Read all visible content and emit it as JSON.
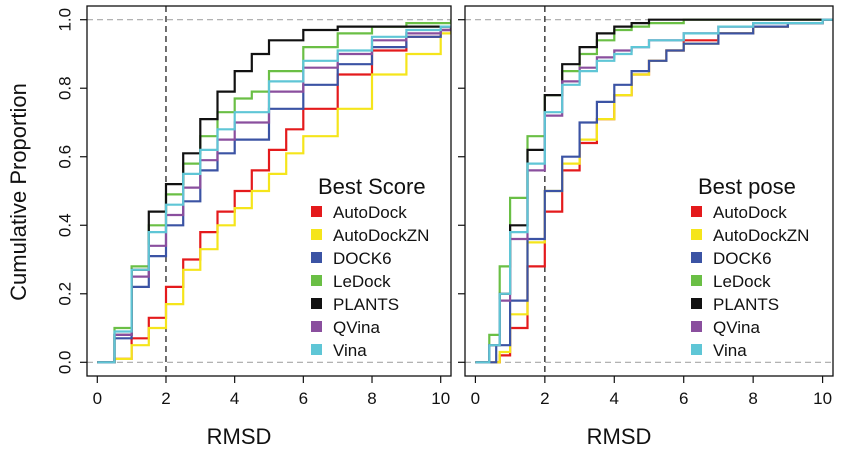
{
  "ylabel": "Cumulative Proportion",
  "chart_data": [
    {
      "type": "line",
      "title": "",
      "xlabel": "RMSD",
      "ylabel": "Cumulative Proportion",
      "xlim": [
        -0.3,
        10.3
      ],
      "ylim": [
        -0.04,
        1.04
      ],
      "xticks": [
        0,
        2,
        4,
        6,
        8,
        10
      ],
      "yticks": [
        0.0,
        0.2,
        0.4,
        0.6,
        0.8,
        1.0
      ],
      "show_yticks": true,
      "reference_lines": {
        "vertical_x": 2,
        "horizontal_y": [
          0,
          1
        ]
      },
      "legend": {
        "title": "Best Score",
        "placement": "right"
      },
      "series": [
        {
          "name": "AutoDock",
          "color": "#e41a1c",
          "x": [
            0,
            0.3,
            0.5,
            1.0,
            1.5,
            2.0,
            2.5,
            3.0,
            3.5,
            4.0,
            4.5,
            5.0,
            5.5,
            6.0,
            7.0,
            8.0,
            9.0,
            10.0,
            10.3
          ],
          "y": [
            0,
            0,
            0.01,
            0.07,
            0.13,
            0.22,
            0.3,
            0.38,
            0.44,
            0.5,
            0.56,
            0.62,
            0.68,
            0.74,
            0.84,
            0.91,
            0.95,
            0.97,
            0.98
          ]
        },
        {
          "name": "AutoDockZN",
          "color": "#f5e51b",
          "x": [
            0,
            0.3,
            0.5,
            1.0,
            1.5,
            2.0,
            2.5,
            3.0,
            3.5,
            4.0,
            4.5,
            5.0,
            5.5,
            6.0,
            7.0,
            8.0,
            9.0,
            10.0,
            10.3
          ],
          "y": [
            0,
            0,
            0.01,
            0.05,
            0.1,
            0.17,
            0.27,
            0.33,
            0.4,
            0.45,
            0.5,
            0.55,
            0.61,
            0.66,
            0.74,
            0.84,
            0.9,
            0.96,
            0.97
          ]
        },
        {
          "name": "DOCK6",
          "color": "#3b53a4",
          "x": [
            0,
            0.2,
            0.5,
            1.0,
            1.5,
            2.0,
            2.5,
            3.0,
            3.5,
            4.0,
            5.0,
            6.0,
            7.0,
            8.0,
            9.0,
            10.0,
            10.3
          ],
          "y": [
            0,
            0,
            0.07,
            0.22,
            0.31,
            0.4,
            0.47,
            0.56,
            0.61,
            0.65,
            0.74,
            0.81,
            0.87,
            0.92,
            0.95,
            0.97,
            0.98
          ]
        },
        {
          "name": "LeDock",
          "color": "#6abf45",
          "x": [
            0,
            0.2,
            0.5,
            1.0,
            1.5,
            2.0,
            2.5,
            3.0,
            3.5,
            4.0,
            4.5,
            5.0,
            6.0,
            7.0,
            8.0,
            9.0,
            10.0,
            10.3
          ],
          "y": [
            0,
            0,
            0.1,
            0.28,
            0.4,
            0.49,
            0.58,
            0.66,
            0.73,
            0.77,
            0.79,
            0.85,
            0.92,
            0.96,
            0.98,
            0.99,
            0.99,
            1.0
          ]
        },
        {
          "name": "PLANTS",
          "color": "#111111",
          "x": [
            0,
            0.2,
            0.5,
            1.0,
            1.5,
            2.0,
            2.5,
            3.0,
            3.5,
            4.0,
            4.5,
            5.0,
            6.0,
            7.0,
            8.0,
            9.0,
            10.0,
            10.3
          ],
          "y": [
            0,
            0,
            0.08,
            0.27,
            0.44,
            0.52,
            0.61,
            0.71,
            0.79,
            0.85,
            0.9,
            0.94,
            0.97,
            0.98,
            0.98,
            0.98,
            0.98,
            0.98
          ]
        },
        {
          "name": "QVina",
          "color": "#8a4f9e",
          "x": [
            0,
            0.2,
            0.5,
            1.0,
            1.5,
            2.0,
            2.5,
            3.0,
            3.5,
            4.0,
            5.0,
            6.0,
            7.0,
            8.0,
            9.0,
            10.0,
            10.3
          ],
          "y": [
            0,
            0,
            0.08,
            0.25,
            0.34,
            0.43,
            0.51,
            0.59,
            0.65,
            0.7,
            0.79,
            0.86,
            0.9,
            0.94,
            0.96,
            0.97,
            0.98
          ]
        },
        {
          "name": "Vina",
          "color": "#5fc6d6",
          "x": [
            0,
            0.2,
            0.5,
            1.0,
            1.5,
            2.0,
            2.5,
            3.0,
            3.5,
            4.0,
            5.0,
            6.0,
            7.0,
            8.0,
            9.0,
            10.0,
            10.3
          ],
          "y": [
            0,
            0,
            0.09,
            0.27,
            0.38,
            0.46,
            0.55,
            0.62,
            0.68,
            0.73,
            0.82,
            0.88,
            0.91,
            0.95,
            0.97,
            0.98,
            0.98
          ]
        }
      ]
    },
    {
      "type": "line",
      "title": "",
      "xlabel": "RMSD",
      "ylabel": "",
      "xlim": [
        -0.3,
        10.3
      ],
      "ylim": [
        -0.04,
        1.04
      ],
      "xticks": [
        0,
        2,
        4,
        6,
        8,
        10
      ],
      "yticks": [
        0.0,
        0.2,
        0.4,
        0.6,
        0.8,
        1.0
      ],
      "show_yticks": false,
      "reference_lines": {
        "vertical_x": 2,
        "horizontal_y": [
          0,
          1
        ]
      },
      "legend": {
        "title": "Best pose",
        "placement": "right"
      },
      "series": [
        {
          "name": "AutoDock",
          "color": "#e41a1c",
          "x": [
            0,
            0.4,
            0.7,
            1.0,
            1.5,
            2.0,
            2.5,
            3.0,
            3.5,
            4.0,
            4.5,
            5.0,
            5.5,
            6.0,
            7.0,
            8.0,
            9.0,
            10.0,
            10.3
          ],
          "y": [
            0,
            0,
            0.02,
            0.1,
            0.28,
            0.44,
            0.56,
            0.64,
            0.71,
            0.78,
            0.84,
            0.88,
            0.91,
            0.94,
            0.96,
            0.98,
            0.99,
            1.0,
            1.0
          ]
        },
        {
          "name": "AutoDockZN",
          "color": "#f5e51b",
          "x": [
            0,
            0.4,
            0.7,
            1.0,
            1.5,
            2.0,
            2.5,
            3.0,
            3.5,
            4.0,
            4.5,
            5.0,
            5.5,
            6.0,
            7.0,
            8.0,
            9.0,
            10.0,
            10.3
          ],
          "y": [
            0,
            0,
            0.03,
            0.14,
            0.35,
            0.5,
            0.58,
            0.65,
            0.71,
            0.78,
            0.84,
            0.88,
            0.91,
            0.93,
            0.96,
            0.98,
            0.99,
            1.0,
            1.0
          ]
        },
        {
          "name": "DOCK6",
          "color": "#3b53a4",
          "x": [
            0,
            0.3,
            0.6,
            1.0,
            1.5,
            2.0,
            2.5,
            3.0,
            3.5,
            4.0,
            4.5,
            5.0,
            5.5,
            6.0,
            7.0,
            8.0,
            9.0,
            10.0,
            10.3
          ],
          "y": [
            0,
            0,
            0.05,
            0.18,
            0.36,
            0.5,
            0.6,
            0.7,
            0.76,
            0.81,
            0.85,
            0.88,
            0.91,
            0.93,
            0.96,
            0.98,
            0.99,
            1.0,
            1.0
          ]
        },
        {
          "name": "LeDock",
          "color": "#6abf45",
          "x": [
            0,
            0.2,
            0.4,
            0.7,
            1.0,
            1.5,
            2.0,
            2.5,
            3.0,
            3.5,
            4.0,
            4.5,
            5.0,
            6.0,
            7.0,
            8.0,
            10.0,
            10.3
          ],
          "y": [
            0,
            0,
            0.08,
            0.28,
            0.48,
            0.66,
            0.78,
            0.85,
            0.9,
            0.94,
            0.97,
            0.98,
            0.99,
            1.0,
            1.0,
            1.0,
            1.0,
            1.0
          ]
        },
        {
          "name": "PLANTS",
          "color": "#111111",
          "x": [
            0,
            0.2,
            0.4,
            0.7,
            1.0,
            1.5,
            2.0,
            2.5,
            3.0,
            3.5,
            4.0,
            4.5,
            5.0,
            6.0,
            7.0,
            8.0,
            10.0,
            10.3
          ],
          "y": [
            0,
            0,
            0.05,
            0.2,
            0.4,
            0.62,
            0.78,
            0.87,
            0.92,
            0.96,
            0.98,
            0.99,
            1.0,
            1.0,
            1.0,
            1.0,
            1.0,
            1.0
          ]
        },
        {
          "name": "QVina",
          "color": "#8a4f9e",
          "x": [
            0,
            0.2,
            0.4,
            0.7,
            1.0,
            1.5,
            2.0,
            2.5,
            3.0,
            3.5,
            4.0,
            4.5,
            5.0,
            6.0,
            7.0,
            8.0,
            9.0,
            10.0,
            10.3
          ],
          "y": [
            0,
            0,
            0.05,
            0.18,
            0.36,
            0.56,
            0.72,
            0.82,
            0.86,
            0.89,
            0.91,
            0.92,
            0.94,
            0.96,
            0.98,
            0.99,
            0.99,
            1.0,
            1.0
          ]
        },
        {
          "name": "Vina",
          "color": "#5fc6d6",
          "x": [
            0,
            0.2,
            0.4,
            0.7,
            1.0,
            1.5,
            2.0,
            2.5,
            3.0,
            3.5,
            4.0,
            4.5,
            5.0,
            6.0,
            7.0,
            8.0,
            9.0,
            10.0,
            10.3
          ],
          "y": [
            0,
            0,
            0.05,
            0.2,
            0.38,
            0.58,
            0.73,
            0.81,
            0.85,
            0.88,
            0.9,
            0.92,
            0.94,
            0.96,
            0.98,
            0.99,
            0.99,
            1.0,
            1.0
          ]
        }
      ]
    }
  ]
}
